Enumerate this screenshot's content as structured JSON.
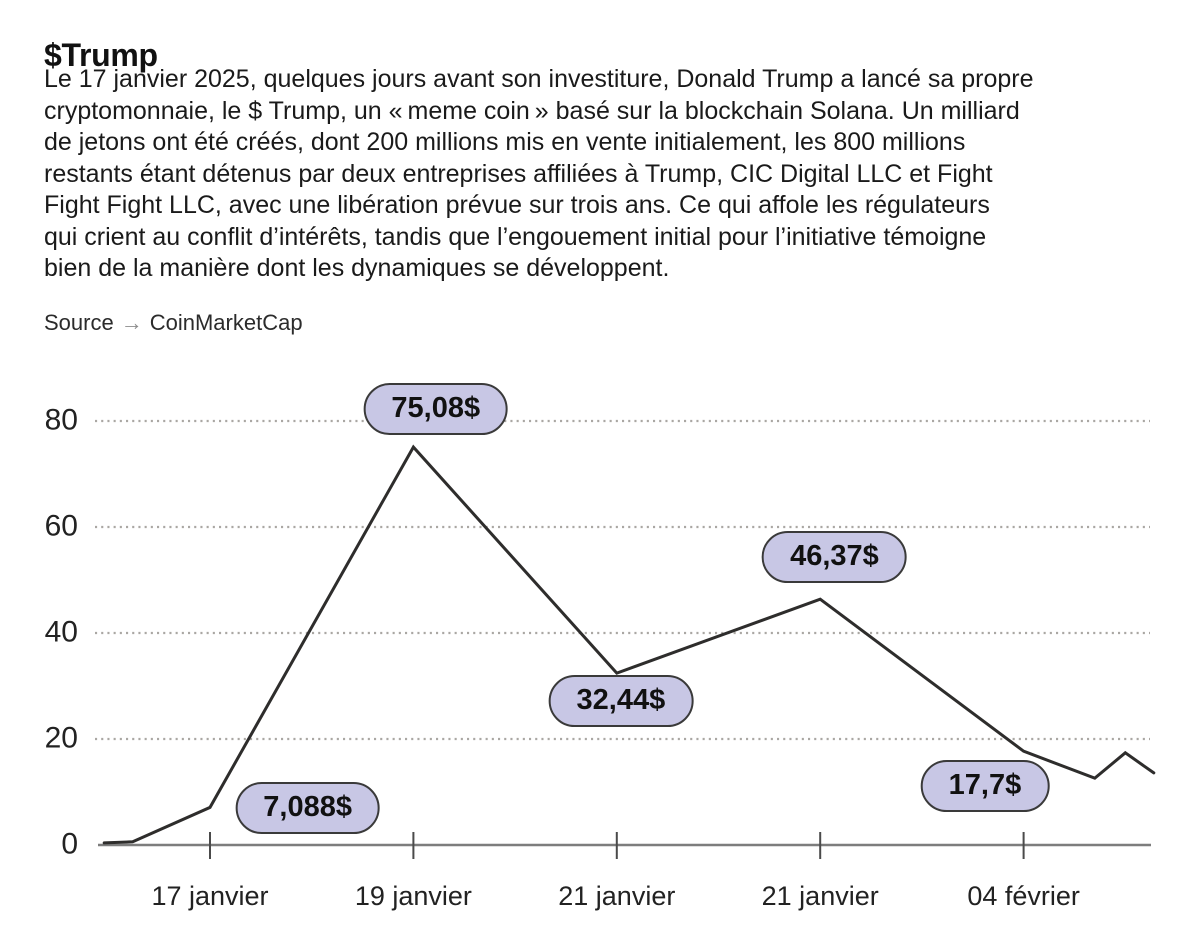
{
  "header": {
    "title": "$Trump",
    "paragraph_lines": [
      "Le 17 janvier 2025, quelques jours avant son investiture, Donald Trump a lancé sa propre",
      "cryptomonnaie, le $ Trump, un « meme coin » basé sur la blockchain Solana. Un milliard",
      "de jetons ont été créés, dont 200 millions mis en vente initialement, les 800 millions",
      "restants étant détenus par deux entreprises affiliées à Trump, CIC Digital LLC et Fight",
      "Fight Fight LLC, avec une libération prévue sur trois ans. Ce qui affole les régulateurs",
      "qui crient au conflit d’intérêts, tandis que l’engouement initial pour l’initiative témoigne",
      "bien de la manière dont les dynamiques se développent."
    ],
    "source_label": "Source",
    "source_arrow": "→",
    "source_name": "CoinMarketCap"
  },
  "chart_data": {
    "type": "line",
    "title": "",
    "xlabel": "",
    "ylabel": "",
    "ylim": [
      0,
      80
    ],
    "yticks": [
      0,
      20,
      40,
      60,
      80
    ],
    "grid": "horizontal-dotted",
    "legend": "none",
    "x_tick_labels": [
      "17 janvier",
      "19 janvier",
      "21 janvier",
      "21 janvier",
      "04 février"
    ],
    "series": [
      {
        "name": "$Trump",
        "points": [
          [
            -0.52,
            0.4
          ],
          [
            -0.38,
            0.6
          ],
          [
            0,
            7.088
          ],
          [
            1,
            75.08
          ],
          [
            2,
            32.44
          ],
          [
            3,
            46.37
          ],
          [
            4,
            17.7
          ],
          [
            4.35,
            12.6
          ],
          [
            4.5,
            17.4
          ],
          [
            4.64,
            13.6
          ]
        ]
      }
    ],
    "annotations": [
      {
        "label": "7,088$",
        "x": 0.48,
        "y": 7.0
      },
      {
        "label": "75,08$",
        "x": 1.11,
        "y": 82.2
      },
      {
        "label": "32,44$",
        "x": 2.02,
        "y": 27.2
      },
      {
        "label": "46,37$",
        "x": 3.07,
        "y": 54.4
      },
      {
        "label": "17,7$",
        "x": 3.81,
        "y": 11.1
      }
    ],
    "colors": {
      "line": "#2e2d2c",
      "pill_fill": "#c8c7e5",
      "pill_border": "#3a3a3a",
      "axis": "#7d7d7d",
      "tick": "#4a4a4a",
      "grid": "#aaa7a3",
      "text": "#1a1a1a"
    }
  }
}
